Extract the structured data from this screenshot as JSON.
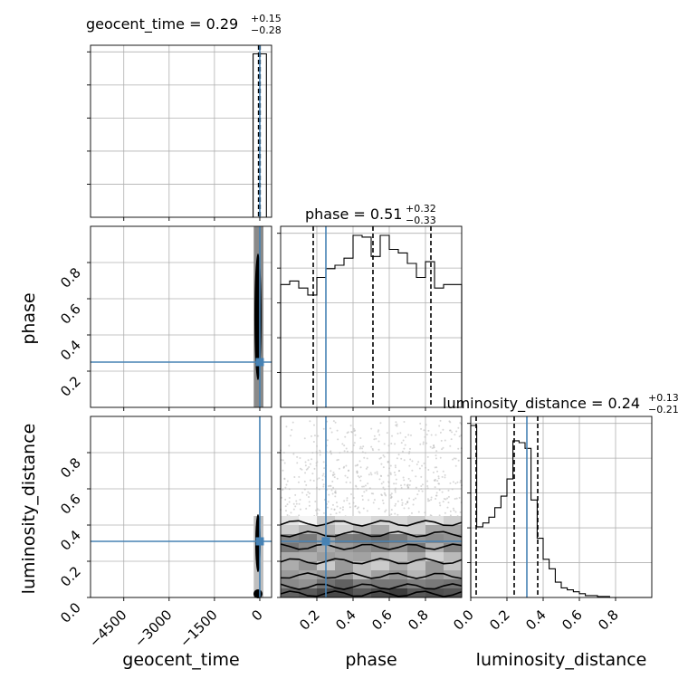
{
  "chart_data": {
    "type": "corner",
    "parameters": [
      "geocent_time",
      "phase",
      "luminosity_distance"
    ],
    "titles": [
      {
        "param": "geocent_time",
        "text": "geocent_time = 0.29",
        "sup": "+0.15",
        "sub": "−0.28"
      },
      {
        "param": "phase",
        "text": "phase = 0.51",
        "sup": "+0.32",
        "sub": "−0.33"
      },
      {
        "param": "luminosity_distance",
        "text": "luminosity_distance = 0.24",
        "sup": "+0.13",
        "sub": "−0.21"
      }
    ],
    "axis_labels": {
      "x": [
        "geocent_time",
        "phase",
        "luminosity_distance"
      ],
      "y": [
        "phase",
        "luminosity_distance"
      ]
    },
    "ticks": {
      "geocent_time": {
        "values": [
          -4500,
          -3000,
          -1500,
          0
        ],
        "labels": [
          "−4500",
          "−3000",
          "−1500",
          "0"
        ],
        "range": [
          -5600,
          390
        ]
      },
      "phase": {
        "values": [
          0.2,
          0.4,
          0.6,
          0.8
        ],
        "labels": [
          "0.2",
          "0.4",
          "0.6",
          "0.8"
        ],
        "range": [
          0.0,
          1.0
        ]
      },
      "luminosity_distance": {
        "values": [
          0.0,
          0.2,
          0.4,
          0.6,
          0.8
        ],
        "labels": [
          "0.0",
          "0.2",
          "0.4",
          "0.6",
          "0.8"
        ],
        "range": [
          0.0,
          1.0
        ]
      },
      "phase_y": {
        "values": [
          0.2,
          0.4,
          0.6,
          0.8
        ],
        "labels": [
          "0.2",
          "0.4",
          "0.6",
          "0.8"
        ],
        "range": [
          0.0,
          1.0
        ]
      },
      "lumdist_y": {
        "values": [
          0.0,
          0.2,
          0.4,
          0.6,
          0.8
        ],
        "labels": [
          "0.0",
          "0.2",
          "0.4",
          "0.6",
          "0.8"
        ],
        "range": [
          0.0,
          1.0
        ]
      }
    },
    "truths": {
      "geocent_time": 0,
      "phase": 0.25,
      "luminosity_distance": 0.31
    },
    "quantiles": {
      "geocent_time": [
        0.01,
        0.29,
        0.44
      ],
      "phase": [
        0.18,
        0.51,
        0.83
      ],
      "luminosity_distance": [
        0.03,
        0.24,
        0.37
      ]
    },
    "histograms": {
      "geocent_time": {
        "edges": [
          -220,
          0,
          220
        ],
        "heights": [
          1.0,
          1.0
        ]
      },
      "phase": {
        "edges": [
          0.0,
          0.05,
          0.1,
          0.15,
          0.2,
          0.25,
          0.3,
          0.35,
          0.4,
          0.45,
          0.5,
          0.55,
          0.6,
          0.65,
          0.7,
          0.75,
          0.8,
          0.85,
          0.9,
          1.0
        ],
        "heights": [
          0.7,
          0.72,
          0.68,
          0.64,
          0.74,
          0.79,
          0.81,
          0.85,
          0.98,
          0.97,
          0.86,
          0.98,
          0.9,
          0.88,
          0.82,
          0.74,
          0.83,
          0.68,
          0.7
        ]
      },
      "luminosity_distance": {
        "edges": [
          0.0,
          0.033,
          0.067,
          0.1,
          0.133,
          0.167,
          0.2,
          0.233,
          0.267,
          0.3,
          0.333,
          0.367,
          0.4,
          0.433,
          0.467,
          0.5,
          0.533,
          0.567,
          0.6,
          0.633,
          0.667,
          0.7,
          0.733,
          0.767,
          0.8,
          0.833,
          0.867,
          0.9,
          0.933,
          1.0
        ],
        "heights": [
          0.9,
          0.37,
          0.39,
          0.42,
          0.47,
          0.53,
          0.62,
          0.82,
          0.81,
          0.78,
          0.51,
          0.31,
          0.2,
          0.15,
          0.08,
          0.05,
          0.04,
          0.03,
          0.02,
          0.01,
          0.01,
          0.005,
          0.005,
          0.0,
          0.0,
          0.0,
          0.0,
          0.0,
          0.0
        ]
      }
    },
    "grid": true,
    "colors": {
      "truth": "#4682b4",
      "hist": "#000000",
      "quantile": "#000000",
      "grid": "#b0b0b0",
      "scatter": "#bdbdbd"
    }
  }
}
